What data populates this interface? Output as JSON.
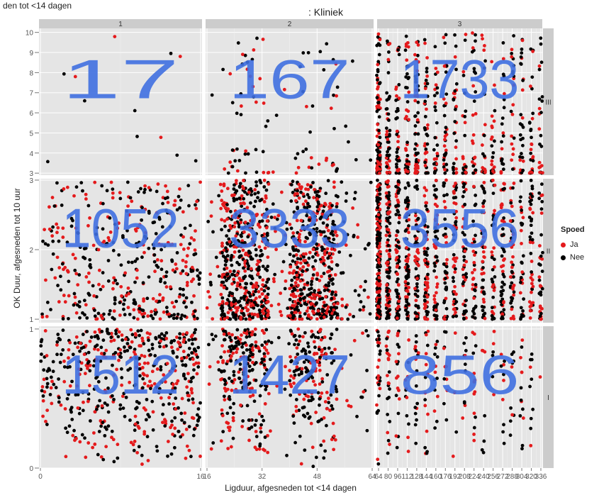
{
  "top_cut_text": "den tot <14 dagen",
  "chart_data": {
    "type": "scatter",
    "facet_col_title": ": Kliniek",
    "facet_cols": [
      "1",
      "2",
      "3"
    ],
    "facet_rows": [
      "III",
      "II",
      "I"
    ],
    "xlabel": "Ligduur, afgesneden tot <14 dagen",
    "ylabel": "OK Duur, afgesneden tot 10 uur",
    "legend": {
      "title": "Spoed",
      "position": "right",
      "items": [
        {
          "name": "Ja",
          "color": "#e41a1c"
        },
        {
          "name": "Nee",
          "color": "#000000"
        }
      ]
    },
    "x_ticks": {
      "1": {
        "range": [
          0,
          16
        ],
        "ticks": [
          0,
          16
        ]
      },
      "2": {
        "range": [
          16,
          64
        ],
        "ticks": [
          16,
          32,
          48,
          64
        ]
      },
      "3": {
        "range": [
          64,
          336
        ],
        "ticks": [
          64,
          80,
          96,
          112,
          128,
          144,
          160,
          176,
          192,
          208,
          224,
          240,
          256,
          272,
          288,
          304,
          320,
          336
        ]
      }
    },
    "y_ticks": {
      "III": {
        "range": [
          2.9,
          10.2
        ],
        "ticks": [
          3,
          4,
          5,
          6,
          7,
          8,
          9,
          10
        ]
      },
      "II": {
        "range": [
          0.95,
          3.02
        ],
        "ticks": [
          1,
          2,
          3
        ]
      },
      "I": {
        "range": [
          0,
          1.02
        ],
        "ticks": [
          0,
          1
        ]
      }
    },
    "cell_counts": [
      {
        "col": "1",
        "row": "III",
        "count": "17"
      },
      {
        "col": "2",
        "row": "III",
        "count": "167"
      },
      {
        "col": "3",
        "row": "III",
        "count": "1733"
      },
      {
        "col": "1",
        "row": "II",
        "count": "1052"
      },
      {
        "col": "2",
        "row": "II",
        "count": "3333"
      },
      {
        "col": "3",
        "row": "II",
        "count": "3556"
      },
      {
        "col": "1",
        "row": "I",
        "count": "1512"
      },
      {
        "col": "2",
        "row": "I",
        "count": "1427"
      },
      {
        "col": "3",
        "row": "I",
        "count": "856"
      }
    ],
    "count_color": "#3f6fe0",
    "panel_background": "#e5e5e5",
    "strip_background": "#cccccc",
    "grid": true
  }
}
